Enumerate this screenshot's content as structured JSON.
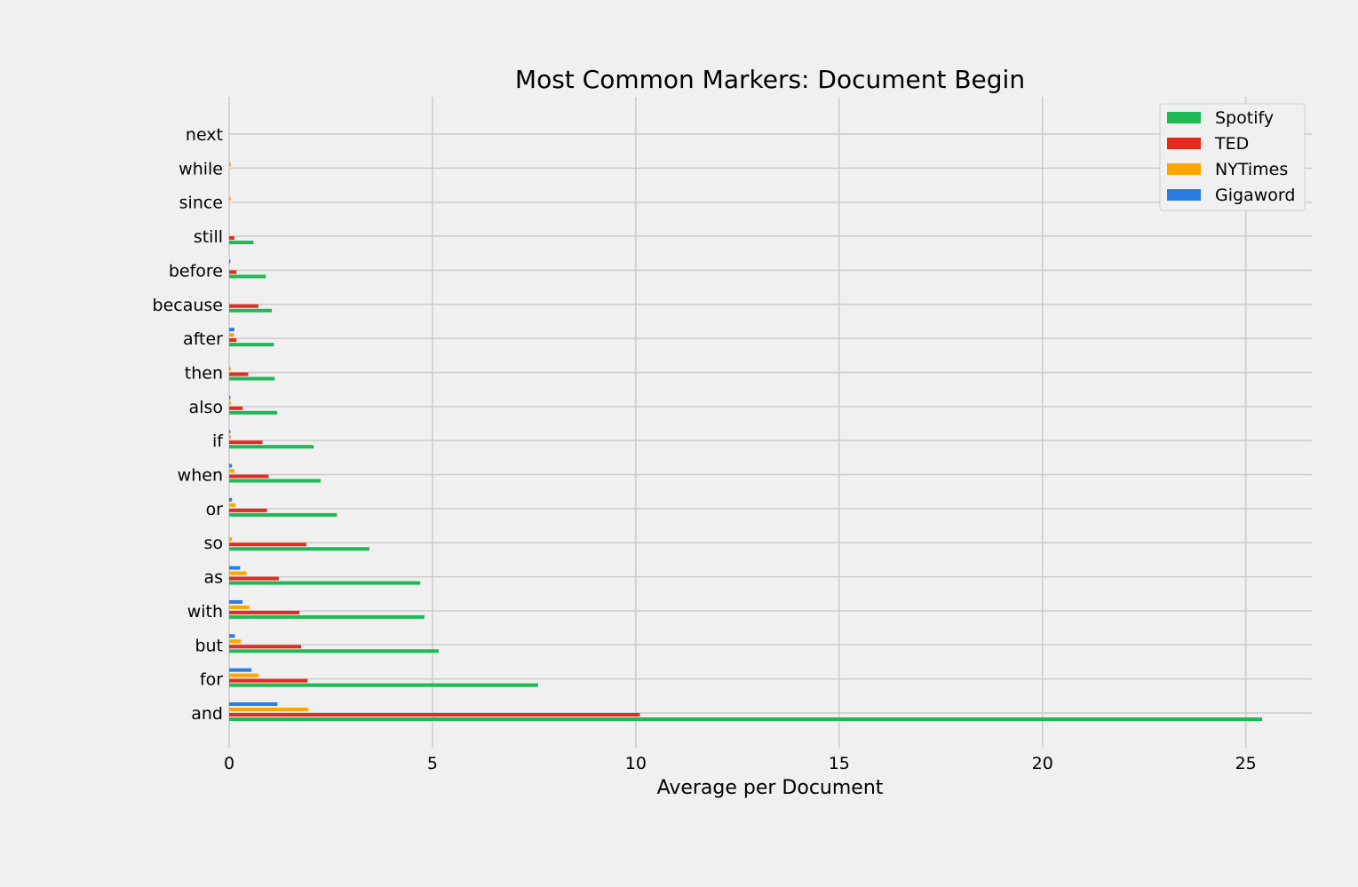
{
  "chart_data": {
    "type": "bar",
    "orientation": "horizontal",
    "title": "Most Common Markers: Document Begin",
    "xlabel": "Average per Document",
    "ylabel": "",
    "xlim": [
      0,
      26.7
    ],
    "xticks": [
      0,
      5,
      10,
      15,
      20,
      25
    ],
    "grid": true,
    "legend_position": "top-right",
    "categories": [
      "and",
      "for",
      "but",
      "with",
      "as",
      "so",
      "or",
      "when",
      "if",
      "also",
      "then",
      "after",
      "because",
      "before",
      "still",
      "since",
      "while",
      "next"
    ],
    "series": [
      {
        "name": "Spotify",
        "color": "#1db954",
        "values": [
          25.4,
          7.6,
          5.15,
          4.8,
          4.7,
          3.45,
          2.65,
          2.25,
          2.08,
          1.18,
          1.12,
          1.1,
          1.05,
          0.9,
          0.6,
          0.0,
          0.0,
          0.0
        ]
      },
      {
        "name": "TED",
        "color": "#e62b1e",
        "values": [
          10.1,
          1.93,
          1.77,
          1.73,
          1.22,
          1.9,
          0.93,
          0.97,
          0.82,
          0.33,
          0.47,
          0.18,
          0.72,
          0.18,
          0.13,
          0.0,
          0.0,
          0.0
        ]
      },
      {
        "name": "NYTimes",
        "color": "#ffa500",
        "values": [
          1.95,
          0.73,
          0.29,
          0.5,
          0.43,
          0.07,
          0.15,
          0.13,
          0.04,
          0.04,
          0.04,
          0.12,
          0.0,
          0.0,
          0.0,
          0.04,
          0.04,
          0.0
        ]
      },
      {
        "name": "Gigaword",
        "color": "#2a7de1",
        "values": [
          1.19,
          0.55,
          0.14,
          0.33,
          0.27,
          0.0,
          0.07,
          0.07,
          0.03,
          0.03,
          0.0,
          0.13,
          0.0,
          0.03,
          0.0,
          0.0,
          0.0,
          0.0
        ]
      }
    ]
  }
}
